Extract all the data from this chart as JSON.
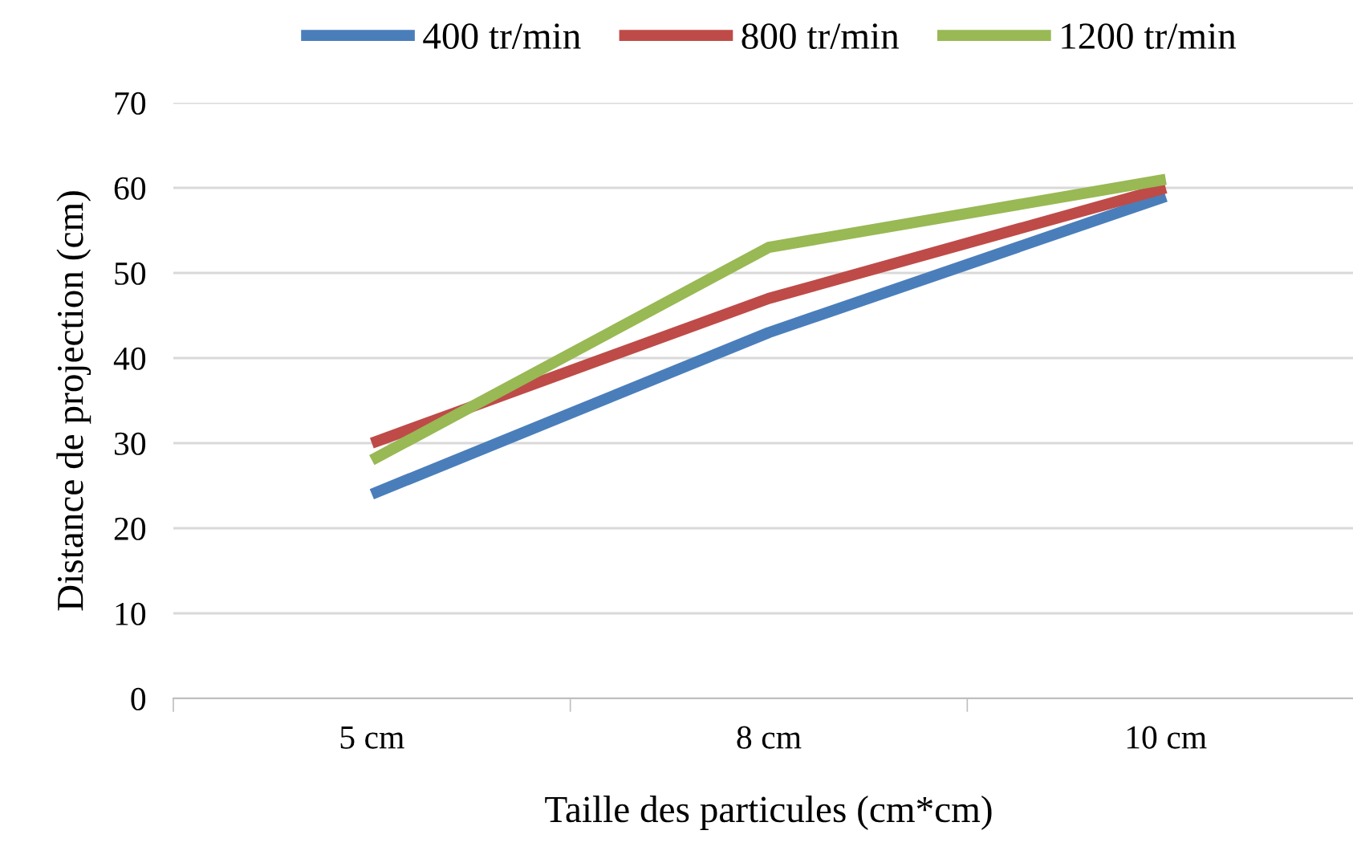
{
  "chart_data": {
    "type": "line",
    "xlabel": "Taille des particules (cm*cm)",
    "ylabel": "Distance de projection (cm)",
    "categories": [
      "5 cm",
      "8 cm",
      "10 cm"
    ],
    "series": [
      {
        "name": "400 tr/min",
        "color": "#4a7ebb",
        "values": [
          24,
          43,
          59
        ]
      },
      {
        "name": "800 tr/min",
        "color": "#be4b48",
        "values": [
          30,
          47,
          60
        ]
      },
      {
        "name": "1200 tr/min",
        "color": "#98b954",
        "values": [
          28,
          53,
          61
        ]
      }
    ],
    "ylim": [
      0,
      70
    ],
    "yticks": [
      0,
      10,
      20,
      30,
      40,
      50,
      60,
      70
    ],
    "grid": "y",
    "legend": "top",
    "marker": "none",
    "line_style": "solid"
  }
}
